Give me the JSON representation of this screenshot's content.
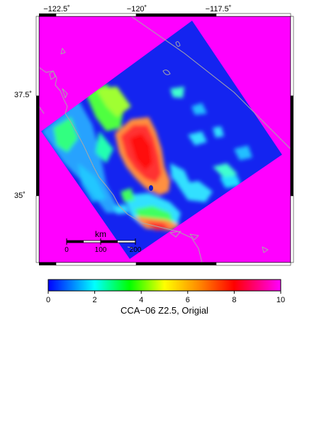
{
  "map": {
    "lon_labels": [
      "−122.5˚",
      "−120˚",
      "−117.5˚"
    ],
    "lat_labels": [
      "37.5˚",
      "35˚"
    ],
    "scale_bar": {
      "unit": "km",
      "ticks": [
        "0",
        "100",
        "200"
      ]
    }
  },
  "colorbar": {
    "ticks": [
      "0",
      "2",
      "4",
      "6",
      "8",
      "10"
    ],
    "colors": [
      "#0000ff",
      "#00ffff",
      "#00ff00",
      "#ffff00",
      "#ff8800",
      "#ff0000",
      "#ff00ff"
    ],
    "label": "CCA−06 Z2.5, Origial"
  },
  "palette": {
    "background": "#ff00ff",
    "model_domain": "#1424f0",
    "coastline": "#a8a8a8",
    "hot": "#ff2222",
    "warm": "#ff9040",
    "mid": "#30ff30",
    "cool": "#20e0ff"
  }
}
